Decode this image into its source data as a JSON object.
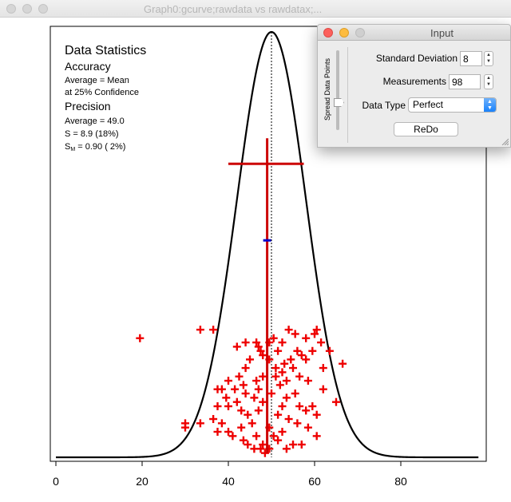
{
  "main_window": {
    "title": "Graph0:gcurve;rawdata vs rawdatax;..."
  },
  "statistics": {
    "heading": "Data Statistics",
    "accuracy_heading": "Accuracy",
    "accuracy_line1": "Average = Mean",
    "accuracy_line2": "at 25% Confidence",
    "precision_heading": "Precision",
    "precision_average": "Average = 49.0",
    "precision_s": "S = 8.9 (18%)",
    "precision_sm_symbol": "S",
    "precision_sm_sub": "M",
    "precision_sm_value": " = 0.90 ( 2%)"
  },
  "input_panel": {
    "title": "Input",
    "spread_label": "Spread Data Points",
    "std_dev_label": "Standard Deviation",
    "std_dev_value": "8",
    "measurements_label": "Measurements",
    "measurements_value": "98",
    "data_type_label": "Data Type",
    "data_type_value": "Perfect",
    "redo_label": "ReDo"
  },
  "colors": {
    "data_points": "#ee0000",
    "error_bars": "#cc0000",
    "sm_marker": "#0000cc",
    "curve": "#000000"
  },
  "chart_data": {
    "type": "scatter",
    "title": "",
    "xlabel": "",
    "ylabel": "",
    "xlim": [
      -1,
      100
    ],
    "ylim": [
      0,
      1
    ],
    "x_ticks": [
      0,
      20,
      40,
      60,
      80
    ],
    "grid": false,
    "curve": {
      "name": "gcurve",
      "mean": 50,
      "sd": 8,
      "xrange": [
        0,
        98
      ]
    },
    "mean_line_x": 50,
    "average_x": 49,
    "sd_bar": {
      "center_x": 49,
      "left_x": 40,
      "right_x": 57.5,
      "y": 0.69
    },
    "sm_marker": {
      "x": 49,
      "y": 0.51
    },
    "vertical_bar": {
      "x": 49,
      "y_top": 0.75,
      "y_bottom": 0.01
    },
    "points": [
      [
        19.5,
        0.28
      ],
      [
        33.5,
        0.3
      ],
      [
        36.5,
        0.3
      ],
      [
        37.5,
        0.16
      ],
      [
        37.5,
        0.12
      ],
      [
        42,
        0.26
      ],
      [
        44,
        0.27
      ],
      [
        46.5,
        0.27
      ],
      [
        47,
        0.26
      ],
      [
        47.5,
        0.25
      ],
      [
        48,
        0.24
      ],
      [
        49.5,
        0.27
      ],
      [
        50.5,
        0.28
      ],
      [
        51.5,
        0.25
      ],
      [
        52.5,
        0.27
      ],
      [
        54,
        0.3
      ],
      [
        55.5,
        0.29
      ],
      [
        58,
        0.28
      ],
      [
        60,
        0.29
      ],
      [
        60.5,
        0.3
      ],
      [
        61.5,
        0.27
      ],
      [
        63.5,
        0.25
      ],
      [
        62,
        0.21
      ],
      [
        66.5,
        0.22
      ],
      [
        58,
        0.23
      ],
      [
        56,
        0.25
      ],
      [
        54.5,
        0.23
      ],
      [
        53,
        0.22
      ],
      [
        55,
        0.21
      ],
      [
        52.5,
        0.2
      ],
      [
        51,
        0.21
      ],
      [
        49.5,
        0.23
      ],
      [
        48,
        0.19
      ],
      [
        45,
        0.23
      ],
      [
        44,
        0.21
      ],
      [
        42.5,
        0.19
      ],
      [
        40,
        0.18
      ],
      [
        41.5,
        0.16
      ],
      [
        43.5,
        0.17
      ],
      [
        46.5,
        0.18
      ],
      [
        44,
        0.15
      ],
      [
        46,
        0.14
      ],
      [
        42,
        0.13
      ],
      [
        38.5,
        0.16
      ],
      [
        39.5,
        0.14
      ],
      [
        40,
        0.12
      ],
      [
        43,
        0.11
      ],
      [
        44.5,
        0.1
      ],
      [
        47,
        0.11
      ],
      [
        45.5,
        0.08
      ],
      [
        43,
        0.07
      ],
      [
        40,
        0.06
      ],
      [
        38.5,
        0.08
      ],
      [
        36.5,
        0.09
      ],
      [
        33.5,
        0.08
      ],
      [
        37.5,
        0.06
      ],
      [
        41,
        0.05
      ],
      [
        43.5,
        0.04
      ],
      [
        44.5,
        0.03
      ],
      [
        46.5,
        0.05
      ],
      [
        47.5,
        0.02
      ],
      [
        48.5,
        0.01
      ],
      [
        49.5,
        0.02
      ],
      [
        50.5,
        0.05
      ],
      [
        51.5,
        0.1
      ],
      [
        52.5,
        0.12
      ],
      [
        52,
        0.17
      ],
      [
        53.5,
        0.14
      ],
      [
        55.5,
        0.15
      ],
      [
        56.5,
        0.12
      ],
      [
        58,
        0.11
      ],
      [
        59.5,
        0.12
      ],
      [
        60.5,
        0.1
      ],
      [
        58.5,
        0.07
      ],
      [
        60.5,
        0.05
      ],
      [
        56,
        0.08
      ],
      [
        54,
        0.09
      ],
      [
        52.5,
        0.06
      ],
      [
        51.5,
        0.04
      ],
      [
        53.5,
        0.02
      ],
      [
        55,
        0.03
      ],
      [
        57,
        0.03
      ],
      [
        46,
        0.02
      ],
      [
        48,
        0.03
      ],
      [
        49.5,
        0.07
      ],
      [
        47,
        0.16
      ],
      [
        48,
        0.13
      ],
      [
        50,
        0.15
      ],
      [
        51,
        0.19
      ],
      [
        53.5,
        0.18
      ],
      [
        56.5,
        0.19
      ],
      [
        58.5,
        0.18
      ],
      [
        57,
        0.24
      ],
      [
        59.5,
        0.25
      ],
      [
        62,
        0.16
      ],
      [
        65,
        0.13
      ],
      [
        30,
        0.08
      ],
      [
        30,
        0.07
      ]
    ]
  }
}
